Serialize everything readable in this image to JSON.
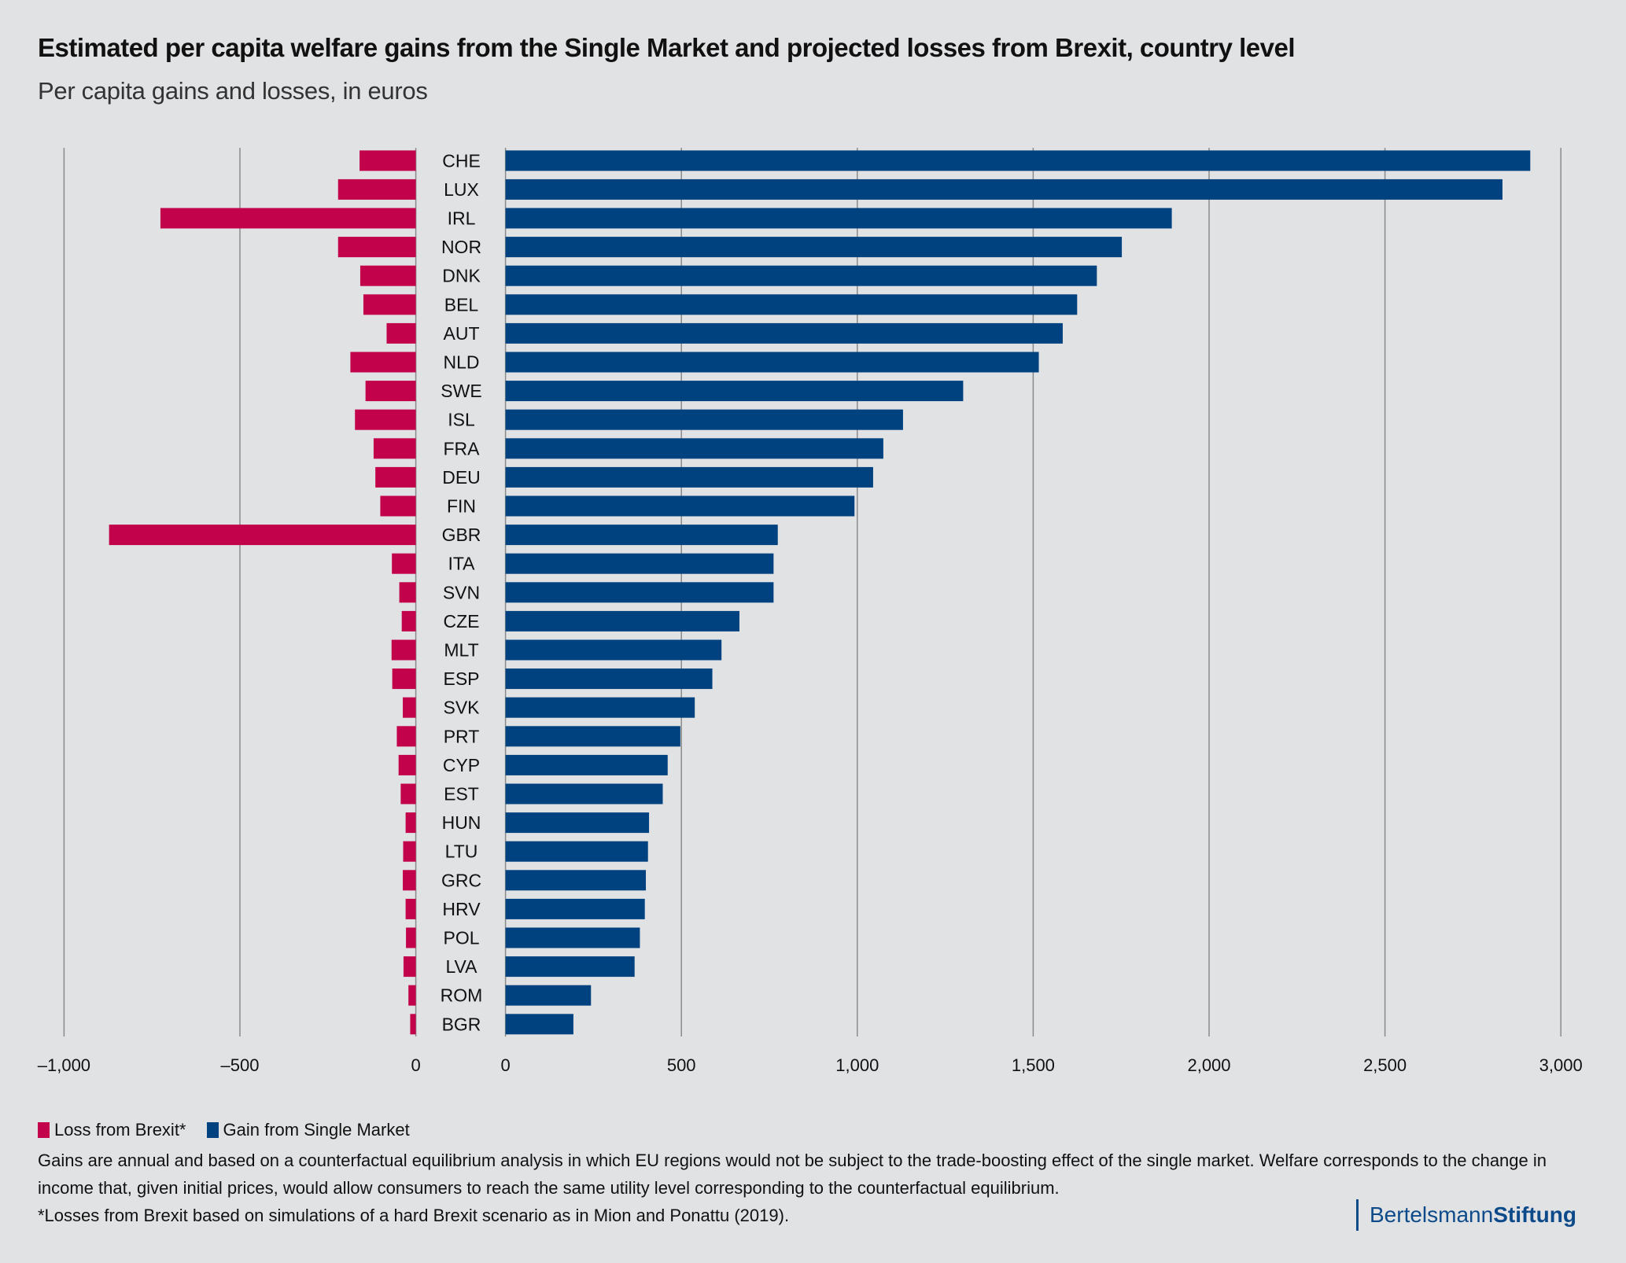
{
  "colors": {
    "loss": "#c2024a",
    "gain": "#00427f",
    "grid": "#8a8a8a",
    "background": "#e1e2e4"
  },
  "chart_data": {
    "type": "bar",
    "orientation": "horizontal",
    "title": "Estimated per capita welfare gains from the Single Market and projected losses from Brexit, country level",
    "subtitle": "Per capita gains and losses, in euros",
    "categories": [
      "CHE",
      "LUX",
      "IRL",
      "NOR",
      "DNK",
      "BEL",
      "AUT",
      "NLD",
      "SWE",
      "ISL",
      "FRA",
      "DEU",
      "FIN",
      "GBR",
      "ITA",
      "SVN",
      "CZE",
      "MLT",
      "ESP",
      "SVK",
      "PRT",
      "CYP",
      "EST",
      "HUN",
      "LTU",
      "GRC",
      "HRV",
      "POL",
      "LVA",
      "ROM",
      "BGR"
    ],
    "series": [
      {
        "name": "Loss from Brexit*",
        "values": [
          -160,
          -221,
          -726,
          -221,
          -158,
          -149,
          -83,
          -186,
          -143,
          -173,
          -120,
          -115,
          -101,
          -872,
          -68,
          -47,
          -40,
          -69,
          -67,
          -37,
          -54,
          -49,
          -43,
          -29,
          -36,
          -37,
          -29,
          -28,
          -35,
          -21,
          -16
        ]
      },
      {
        "name": "Gain from Single Market",
        "values": [
          2913,
          2834,
          1894,
          1752,
          1681,
          1625,
          1584,
          1516,
          1301,
          1130,
          1074,
          1045,
          992,
          774,
          762,
          762,
          665,
          614,
          588,
          538,
          497,
          461,
          447,
          408,
          405,
          399,
          396,
          382,
          367,
          243,
          193
        ]
      }
    ],
    "left_axis": {
      "range": [
        -1000,
        0
      ],
      "ticks": [
        -1000,
        -500,
        0
      ],
      "tick_labels": [
        "–1,000",
        "–500",
        "0"
      ]
    },
    "right_axis": {
      "range": [
        0,
        3000
      ],
      "ticks": [
        0,
        500,
        1000,
        1500,
        2000,
        2500,
        3000
      ],
      "tick_labels": [
        "0",
        "500",
        "1,000",
        "1,500",
        "2,000",
        "2,500",
        "3,000"
      ]
    },
    "grid": "vertical",
    "legend_placement": "bottom-left"
  },
  "legend": {
    "loss_label": "Loss from Brexit*",
    "gain_label": "Gain from Single Market"
  },
  "notes": {
    "text": "Gains are annual and based on a counterfactual equilibrium analysis in which EU regions would not be subject to the trade-boosting effect of the single market. Welfare corresponds to the change in income that, given initial prices, would allow consumers to reach the same utility level corresponding to the counterfactual equilibrium.",
    "footnote": "*Losses from Brexit based on simulations of a hard Brexit scenario as in Mion and Ponattu (2019)."
  },
  "logo": {
    "part1": "Bertelsmann",
    "part2": "Stiftung"
  }
}
